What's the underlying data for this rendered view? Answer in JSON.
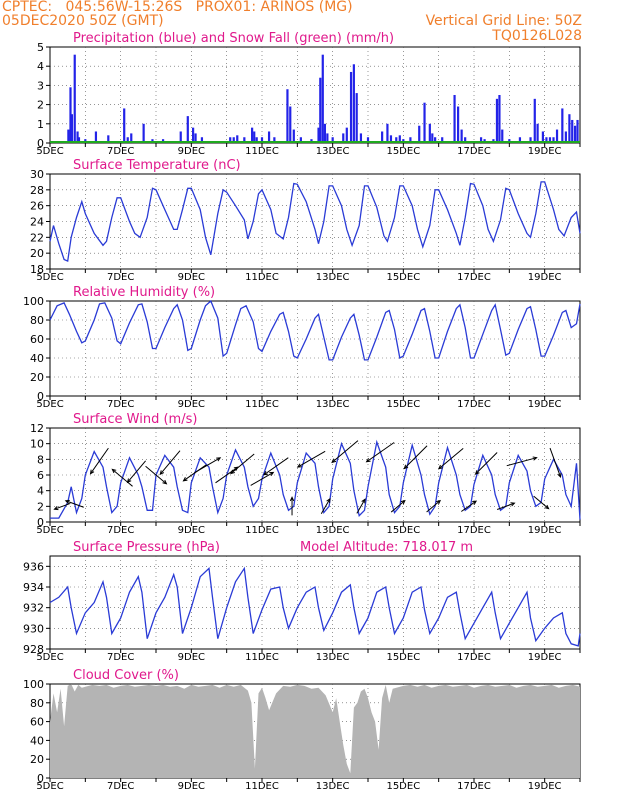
{
  "header": {
    "line1": "CPTEC:   045:56W-15:26S   PROX01: ARINOS (MG)",
    "line2": "05DEC2020 50Z (GMT)",
    "right1": "Vertical Grid Line: 50Z",
    "right2": "TQ0126L028"
  },
  "colors": {
    "header": "#f07f2c",
    "title": "#e0198c",
    "line": "#2a3bd6",
    "bar": "#2323e8",
    "snow": "#1faa1f",
    "cloud": "#b4b4b4"
  },
  "x_tick_labels": [
    "5DEC",
    "7DEC",
    "9DEC",
    "11DEC",
    "13DEC",
    "15DEC",
    "17DEC",
    "19DEC"
  ],
  "x_tick_days": [
    5,
    7,
    9,
    11,
    13,
    15,
    17,
    19
  ],
  "chart_data": [
    {
      "id": "precip",
      "type": "bar",
      "title": "Precipitation (blue) and Snow Fall (green) (mm/h)",
      "ylim": [
        0,
        5
      ],
      "yticks": [
        0,
        1,
        2,
        3,
        4,
        5
      ],
      "x": [
        5.52,
        5.58,
        5.62,
        5.7,
        5.78,
        5.82,
        6.0,
        6.3,
        6.65,
        7.1,
        7.2,
        7.3,
        7.65,
        7.9,
        8.2,
        8.7,
        8.9,
        9.05,
        9.12,
        9.3,
        10.1,
        10.2,
        10.3,
        10.5,
        10.72,
        10.78,
        10.85,
        11.0,
        11.2,
        11.35,
        11.72,
        11.8,
        11.9,
        12.1,
        12.4,
        12.6,
        12.65,
        12.72,
        12.78,
        12.85,
        13.0,
        13.3,
        13.4,
        13.52,
        13.6,
        13.68,
        13.8,
        14.0,
        14.4,
        14.55,
        14.65,
        14.8,
        14.9,
        15.0,
        15.2,
        15.45,
        15.6,
        15.75,
        15.82,
        15.9,
        16.1,
        16.45,
        16.55,
        16.65,
        16.75,
        17.2,
        17.3,
        17.55,
        17.65,
        17.72,
        17.8,
        18.0,
        18.3,
        18.6,
        18.72,
        18.8,
        18.95,
        19.05,
        19.15,
        19.25,
        19.35,
        19.5,
        19.6,
        19.7,
        19.78,
        19.86,
        19.93
      ],
      "values": [
        0.7,
        2.9,
        1.5,
        4.6,
        0.6,
        0.3,
        0.2,
        0.6,
        0.4,
        1.8,
        0.3,
        0.5,
        1.0,
        0.2,
        0.2,
        0.6,
        1.4,
        0.8,
        0.5,
        0.3,
        0.3,
        0.3,
        0.4,
        0.3,
        0.8,
        0.6,
        0.3,
        0.3,
        0.6,
        0.3,
        2.8,
        1.9,
        0.7,
        0.3,
        0.2,
        0.8,
        3.4,
        4.6,
        1.0,
        0.5,
        0.3,
        0.5,
        0.8,
        3.7,
        4.1,
        2.6,
        0.5,
        0.3,
        0.6,
        1.0,
        0.4,
        0.3,
        0.4,
        0.2,
        0.3,
        0.9,
        2.1,
        1.0,
        0.5,
        0.3,
        0.3,
        2.5,
        1.9,
        0.7,
        0.3,
        0.3,
        0.2,
        0.2,
        2.3,
        2.5,
        0.7,
        0.2,
        0.3,
        0.3,
        2.3,
        1.0,
        0.6,
        0.3,
        0.3,
        0.3,
        0.7,
        1.8,
        0.6,
        1.5,
        1.2,
        0.9,
        1.2
      ]
    },
    {
      "id": "temp",
      "type": "line",
      "title": "Surface Temperature (nC)",
      "ylim": [
        18,
        30
      ],
      "yticks": [
        18,
        20,
        22,
        24,
        26,
        28,
        30
      ],
      "x": [
        5,
        5.1,
        5.25,
        5.4,
        5.5,
        5.6,
        5.75,
        5.9,
        6,
        6.25,
        6.5,
        6.6,
        6.75,
        6.9,
        7,
        7.25,
        7.4,
        7.55,
        7.75,
        7.9,
        8,
        8.25,
        8.5,
        8.6,
        8.75,
        8.9,
        9,
        9.25,
        9.4,
        9.55,
        9.75,
        9.9,
        10,
        10.25,
        10.5,
        10.6,
        10.75,
        10.9,
        11,
        11.25,
        11.4,
        11.6,
        11.75,
        11.9,
        12,
        12.25,
        12.5,
        12.6,
        12.75,
        12.9,
        13,
        13.25,
        13.4,
        13.55,
        13.75,
        13.9,
        14,
        14.25,
        14.45,
        14.55,
        14.75,
        14.9,
        15,
        15.25,
        15.4,
        15.55,
        15.75,
        15.9,
        16,
        16.25,
        16.5,
        16.6,
        16.75,
        16.9,
        17,
        17.25,
        17.4,
        17.55,
        17.75,
        17.9,
        18,
        18.25,
        18.5,
        18.6,
        18.75,
        18.9,
        19,
        19.25,
        19.4,
        19.55,
        19.75,
        19.9,
        20
      ],
      "values": [
        21.5,
        23.5,
        21.2,
        19.2,
        19.0,
        22.0,
        24.5,
        26.5,
        25.0,
        22.5,
        21.0,
        21.5,
        24.5,
        27.0,
        27.0,
        24.0,
        22.5,
        22.0,
        24.5,
        28.2,
        28.0,
        25.5,
        23.0,
        23.0,
        25.5,
        28.2,
        28.2,
        25.5,
        22.0,
        19.8,
        25.0,
        28.0,
        27.7,
        26.0,
        24.2,
        21.8,
        24.0,
        27.5,
        28.0,
        25.5,
        22.5,
        21.8,
        24.5,
        28.8,
        28.7,
        26.5,
        23.0,
        21.2,
        24.0,
        28.5,
        28.5,
        26.0,
        23.0,
        21.0,
        23.5,
        28.5,
        28.5,
        25.8,
        22.2,
        21.5,
        24.5,
        28.5,
        28.5,
        26.0,
        23.0,
        20.8,
        23.5,
        28.0,
        28.0,
        25.5,
        22.5,
        21.0,
        24.5,
        28.8,
        28.7,
        26.0,
        23.0,
        21.5,
        24.2,
        28.2,
        28.0,
        25.0,
        22.5,
        22.0,
        25.0,
        29.0,
        29.0,
        25.5,
        23.0,
        22.2,
        24.5,
        25.2,
        22.5
      ]
    },
    {
      "id": "rh",
      "type": "line",
      "title": "Relative Humidity (%)",
      "ylim": [
        0,
        100
      ],
      "yticks": [
        0,
        20,
        40,
        60,
        80,
        100
      ],
      "x": [
        5,
        5.2,
        5.4,
        5.55,
        5.75,
        5.9,
        6,
        6.25,
        6.4,
        6.55,
        6.75,
        6.9,
        7,
        7.25,
        7.5,
        7.6,
        7.75,
        7.9,
        8,
        8.25,
        8.5,
        8.6,
        8.75,
        8.9,
        9,
        9.25,
        9.4,
        9.55,
        9.75,
        9.9,
        10,
        10.25,
        10.4,
        10.55,
        10.75,
        10.9,
        11,
        11.25,
        11.5,
        11.6,
        11.75,
        11.9,
        12,
        12.25,
        12.5,
        12.6,
        12.75,
        12.9,
        13,
        13.25,
        13.5,
        13.6,
        13.75,
        13.9,
        14,
        14.25,
        14.5,
        14.6,
        14.75,
        14.9,
        15,
        15.25,
        15.5,
        15.6,
        15.75,
        15.9,
        16,
        16.25,
        16.5,
        16.6,
        16.75,
        16.9,
        17,
        17.25,
        17.5,
        17.6,
        17.75,
        17.9,
        18,
        18.25,
        18.5,
        18.6,
        18.75,
        18.9,
        19,
        19.25,
        19.5,
        19.6,
        19.75,
        19.9,
        20
      ],
      "values": [
        80,
        95,
        98,
        86,
        68,
        56,
        58,
        80,
        97,
        98,
        82,
        58,
        55,
        77,
        96,
        97,
        78,
        50,
        50,
        72,
        92,
        96,
        80,
        48,
        50,
        80,
        95,
        100,
        82,
        42,
        45,
        75,
        92,
        95,
        78,
        50,
        47,
        68,
        86,
        88,
        68,
        42,
        40,
        60,
        82,
        86,
        62,
        38,
        38,
        62,
        82,
        86,
        64,
        38,
        38,
        62,
        88,
        90,
        70,
        40,
        42,
        65,
        90,
        92,
        68,
        40,
        40,
        68,
        92,
        96,
        72,
        40,
        40,
        65,
        90,
        96,
        70,
        43,
        45,
        70,
        92,
        94,
        70,
        42,
        42,
        64,
        88,
        90,
        72,
        76,
        97
      ]
    },
    {
      "id": "wind",
      "type": "line",
      "title": "Surface Wind (m/s)",
      "ylim": [
        0,
        12
      ],
      "yticks": [
        0,
        2,
        4,
        6,
        8,
        10,
        12
      ],
      "x": [
        5,
        5.25,
        5.5,
        5.6,
        5.75,
        5.9,
        6,
        6.25,
        6.5,
        6.6,
        6.75,
        6.9,
        7,
        7.25,
        7.5,
        7.6,
        7.75,
        7.9,
        8,
        8.25,
        8.5,
        8.6,
        8.75,
        8.9,
        9,
        9.25,
        9.5,
        9.6,
        9.75,
        9.9,
        10,
        10.25,
        10.5,
        10.6,
        10.75,
        10.9,
        11,
        11.25,
        11.5,
        11.6,
        11.75,
        11.9,
        12,
        12.25,
        12.5,
        12.6,
        12.75,
        12.9,
        13,
        13.25,
        13.5,
        13.6,
        13.75,
        13.9,
        14,
        14.25,
        14.5,
        14.6,
        14.75,
        14.9,
        15,
        15.25,
        15.5,
        15.6,
        15.75,
        15.9,
        16,
        16.25,
        16.5,
        16.6,
        16.75,
        16.9,
        17,
        17.25,
        17.5,
        17.6,
        17.75,
        17.9,
        18,
        18.25,
        18.5,
        18.6,
        18.75,
        18.9,
        19,
        19.25,
        19.5,
        19.6,
        19.75,
        19.9,
        20
      ],
      "values": [
        0.5,
        0.5,
        2.5,
        4.5,
        1.2,
        3.0,
        6.0,
        9.0,
        7.0,
        4.5,
        1.2,
        2.0,
        5.0,
        8.2,
        6.0,
        4.5,
        1.5,
        1.5,
        6.0,
        8.5,
        7.0,
        4.5,
        1.5,
        1.2,
        5.0,
        8.2,
        7.0,
        4.5,
        1.2,
        3.0,
        6.0,
        9.2,
        7.0,
        4.5,
        2.0,
        3.0,
        5.5,
        8.8,
        6.0,
        3.5,
        1.5,
        2.0,
        5.0,
        8.8,
        7.5,
        4.5,
        1.2,
        2.0,
        5.5,
        10.0,
        7.5,
        4.0,
        0.8,
        1.5,
        4.5,
        10.2,
        7.0,
        3.5,
        1.2,
        2.0,
        5.0,
        9.8,
        6.0,
        3.5,
        1.0,
        2.0,
        5.0,
        9.5,
        6.0,
        3.5,
        1.5,
        2.0,
        4.8,
        8.5,
        6.0,
        3.5,
        1.5,
        2.0,
        5.0,
        8.5,
        6.5,
        4.0,
        2.0,
        2.5,
        5.5,
        8.0,
        6.0,
        3.5,
        2.0,
        7.5,
        0.3
      ],
      "arrows": [
        {
          "x": 5.35,
          "angle": 200
        },
        {
          "x": 5.7,
          "angle": 160
        },
        {
          "x": 6.4,
          "angle": 235
        },
        {
          "x": 7.05,
          "angle": 140
        },
        {
          "x": 7.45,
          "angle": 230
        },
        {
          "x": 8.0,
          "angle": 320
        },
        {
          "x": 8.4,
          "angle": 230
        },
        {
          "x": 9.1,
          "angle": 215
        },
        {
          "x": 9.45,
          "angle": 30
        },
        {
          "x": 10.0,
          "angle": 35
        },
        {
          "x": 10.45,
          "angle": 220
        },
        {
          "x": 11.0,
          "angle": 30
        },
        {
          "x": 11.4,
          "angle": 215
        },
        {
          "x": 11.85,
          "angle": 90
        },
        {
          "x": 12.4,
          "angle": 210
        },
        {
          "x": 12.8,
          "angle": 60
        },
        {
          "x": 13.35,
          "angle": 220
        },
        {
          "x": 13.8,
          "angle": 60
        },
        {
          "x": 14.35,
          "angle": 215
        },
        {
          "x": 14.85,
          "angle": 40
        },
        {
          "x": 15.35,
          "angle": 225
        },
        {
          "x": 15.85,
          "angle": 40
        },
        {
          "x": 16.35,
          "angle": 220
        },
        {
          "x": 16.85,
          "angle": 35
        },
        {
          "x": 17.35,
          "angle": 225
        },
        {
          "x": 17.9,
          "angle": 20
        },
        {
          "x": 18.35,
          "angle": 15
        },
        {
          "x": 18.9,
          "angle": 320
        },
        {
          "x": 19.3,
          "angle": 290
        }
      ]
    },
    {
      "id": "pressure",
      "type": "line",
      "title": "Surface Pressure (hPa)",
      "subtitle": "Model Altitude: 718.017 m",
      "ylim": [
        928,
        937
      ],
      "yticks": [
        928,
        930,
        932,
        934,
        936
      ],
      "x": [
        5,
        5.25,
        5.5,
        5.6,
        5.75,
        6,
        6.25,
        6.5,
        6.6,
        6.75,
        7,
        7.25,
        7.5,
        7.6,
        7.75,
        8,
        8.25,
        8.5,
        8.6,
        8.75,
        9,
        9.25,
        9.5,
        9.6,
        9.75,
        10,
        10.25,
        10.5,
        10.6,
        10.75,
        11,
        11.25,
        11.5,
        11.6,
        11.75,
        12,
        12.25,
        12.5,
        12.6,
        12.75,
        13,
        13.25,
        13.5,
        13.6,
        13.75,
        14,
        14.25,
        14.5,
        14.6,
        14.75,
        15,
        15.25,
        15.5,
        15.6,
        15.75,
        16,
        16.25,
        16.5,
        16.6,
        16.75,
        17,
        17.25,
        17.5,
        17.6,
        17.75,
        18,
        18.25,
        18.5,
        18.6,
        18.75,
        19,
        19.25,
        19.5,
        19.6,
        19.75,
        19.95,
        20
      ],
      "values": [
        932.5,
        933.0,
        934.0,
        932.0,
        929.5,
        931.5,
        932.5,
        934.5,
        933.0,
        929.5,
        931.0,
        933.5,
        935.0,
        933.5,
        929.0,
        931.5,
        933.0,
        935.2,
        934.0,
        929.5,
        932.0,
        935.0,
        935.8,
        933.0,
        929.0,
        932.0,
        934.5,
        935.8,
        933.0,
        929.5,
        931.8,
        933.8,
        934.0,
        932.0,
        930.0,
        932.0,
        933.5,
        934.0,
        932.0,
        929.8,
        931.5,
        933.5,
        934.2,
        932.0,
        929.5,
        931.0,
        933.5,
        934.0,
        932.0,
        929.5,
        931.0,
        933.5,
        934.0,
        931.8,
        929.5,
        931.0,
        933.0,
        933.5,
        931.5,
        929.0,
        930.5,
        932.0,
        933.5,
        931.5,
        929.0,
        930.5,
        932.0,
        933.5,
        931.0,
        928.8,
        930.0,
        931.0,
        931.5,
        929.5,
        928.5,
        928.3,
        929.5
      ]
    },
    {
      "id": "cloud",
      "type": "area",
      "title": "Cloud Cover (%)",
      "ylim": [
        0,
        100
      ],
      "yticks": [
        0,
        20,
        40,
        60,
        80,
        100
      ],
      "x": [
        5,
        5.1,
        5.2,
        5.3,
        5.4,
        5.5,
        5.6,
        5.7,
        5.8,
        5.9,
        6,
        6.2,
        6.4,
        6.6,
        6.8,
        7,
        7.2,
        7.4,
        7.6,
        7.8,
        8,
        8.2,
        8.4,
        8.6,
        8.8,
        9,
        9.2,
        9.4,
        9.6,
        9.8,
        10,
        10.2,
        10.4,
        10.6,
        10.7,
        10.8,
        10.9,
        11,
        11.1,
        11.2,
        11.4,
        11.6,
        11.8,
        12,
        12.2,
        12.4,
        12.6,
        12.8,
        13,
        13.1,
        13.2,
        13.3,
        13.4,
        13.5,
        13.6,
        13.7,
        13.8,
        13.9,
        14,
        14.1,
        14.2,
        14.3,
        14.4,
        14.5,
        14.6,
        14.7,
        14.8,
        15,
        15.2,
        15.4,
        15.6,
        15.8,
        16,
        16.2,
        16.4,
        16.6,
        16.8,
        17,
        17.2,
        17.4,
        17.6,
        17.8,
        18,
        18.2,
        18.4,
        18.6,
        18.8,
        19,
        19.2,
        19.4,
        19.6,
        19.8,
        20
      ],
      "values": [
        60,
        90,
        70,
        95,
        55,
        98,
        100,
        92,
        99,
        96,
        97,
        99,
        98,
        99,
        96,
        98,
        99,
        97,
        98,
        99,
        98,
        99,
        97,
        98,
        95,
        99,
        97,
        98,
        99,
        96,
        99,
        97,
        99,
        93,
        80,
        10,
        90,
        96,
        85,
        72,
        90,
        98,
        97,
        99,
        98,
        95,
        96,
        88,
        70,
        85,
        60,
        35,
        15,
        5,
        75,
        80,
        92,
        95,
        85,
        70,
        60,
        30,
        85,
        99,
        80,
        95,
        96,
        98,
        99,
        97,
        99,
        96,
        98,
        99,
        97,
        98,
        99,
        96,
        98,
        99,
        97,
        98,
        99,
        96,
        98,
        99,
        97,
        98,
        99,
        96,
        98,
        99,
        97
      ]
    }
  ]
}
